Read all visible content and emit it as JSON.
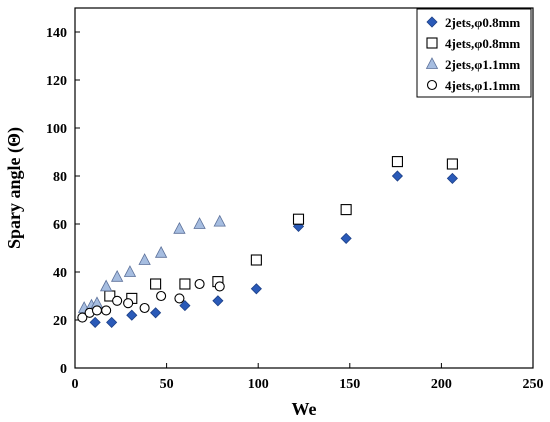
{
  "chart_data": {
    "type": "scatter",
    "xlabel": "We",
    "ylabel": "Spary angle (Θ)",
    "xlim": [
      0,
      250
    ],
    "ylim": [
      0,
      150
    ],
    "xticks": [
      0,
      50,
      100,
      150,
      200,
      250
    ],
    "yticks": [
      0,
      20,
      40,
      60,
      80,
      100,
      120,
      140
    ],
    "grid": false,
    "legend_position": "top-right",
    "series": [
      {
        "name": "2jets,φ0.8mm",
        "marker": "diamond",
        "color": "#2a5ab8",
        "points": [
          [
            11,
            19
          ],
          [
            20,
            19
          ],
          [
            31,
            22
          ],
          [
            44,
            23
          ],
          [
            60,
            26
          ],
          [
            78,
            28
          ],
          [
            99,
            33
          ],
          [
            122,
            59
          ],
          [
            148,
            54
          ],
          [
            176,
            80
          ],
          [
            206,
            79
          ]
        ]
      },
      {
        "name": "4jets,φ0.8mm",
        "marker": "square",
        "color": "#000000",
        "points": [
          [
            19,
            30
          ],
          [
            31,
            29
          ],
          [
            44,
            35
          ],
          [
            60,
            35
          ],
          [
            78,
            36
          ],
          [
            99,
            45
          ],
          [
            122,
            62
          ],
          [
            148,
            66
          ],
          [
            176,
            86
          ],
          [
            206,
            85
          ]
        ]
      },
      {
        "name": "2jets,φ1.1mm",
        "marker": "triangle",
        "color": "#a6bde0",
        "points": [
          [
            5,
            25
          ],
          [
            9,
            26
          ],
          [
            12,
            27
          ],
          [
            17,
            34
          ],
          [
            23,
            38
          ],
          [
            30,
            40
          ],
          [
            38,
            45
          ],
          [
            47,
            48
          ],
          [
            57,
            58
          ],
          [
            68,
            60
          ],
          [
            79,
            61
          ]
        ]
      },
      {
        "name": "4jets,φ1.1mm",
        "marker": "circle",
        "color": "#000000",
        "points": [
          [
            4,
            21
          ],
          [
            8,
            23
          ],
          [
            12,
            24
          ],
          [
            17,
            24
          ],
          [
            23,
            28
          ],
          [
            29,
            27
          ],
          [
            38,
            25
          ],
          [
            47,
            30
          ],
          [
            57,
            29
          ],
          [
            68,
            35
          ],
          [
            79,
            34
          ]
        ]
      }
    ]
  }
}
